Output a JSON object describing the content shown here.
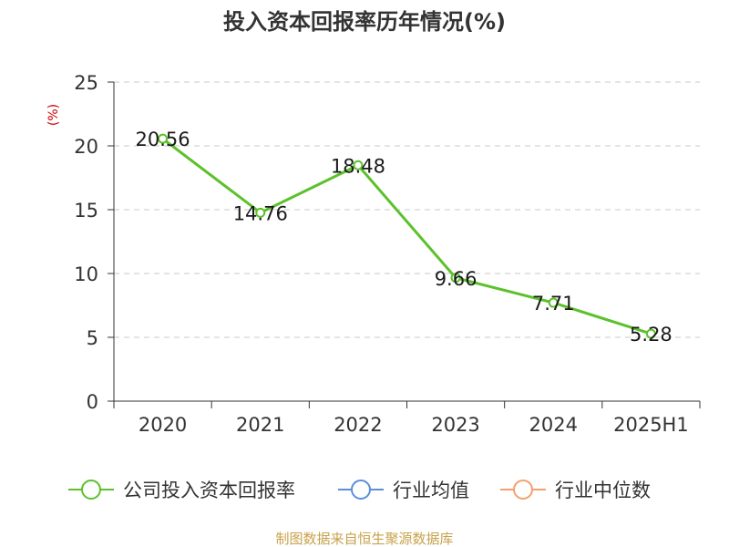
{
  "chart_data": {
    "type": "line",
    "title": "投入资本回报率历年情况(%)",
    "ylabel": "(%)",
    "xlabel": "",
    "categories": [
      "2020",
      "2021",
      "2022",
      "2023",
      "2024",
      "2025H1"
    ],
    "ylim": [
      0,
      25
    ],
    "yticks": [
      0,
      5,
      10,
      15,
      20,
      25
    ],
    "grid": true,
    "legend_position": "bottom",
    "series": [
      {
        "name": "公司投入资本回报率",
        "values": [
          20.56,
          14.76,
          18.48,
          9.66,
          7.71,
          5.28
        ],
        "color": "#5cc12b"
      }
    ],
    "legend_entries": [
      {
        "name": "公司投入资本回报率",
        "color": "#5cc12b"
      },
      {
        "name": "行业均值",
        "color": "#5b8fd9"
      },
      {
        "name": "行业中位数",
        "color": "#f4a06b"
      }
    ]
  },
  "footer": {
    "source": "制图数据来自恒生聚源数据库"
  }
}
